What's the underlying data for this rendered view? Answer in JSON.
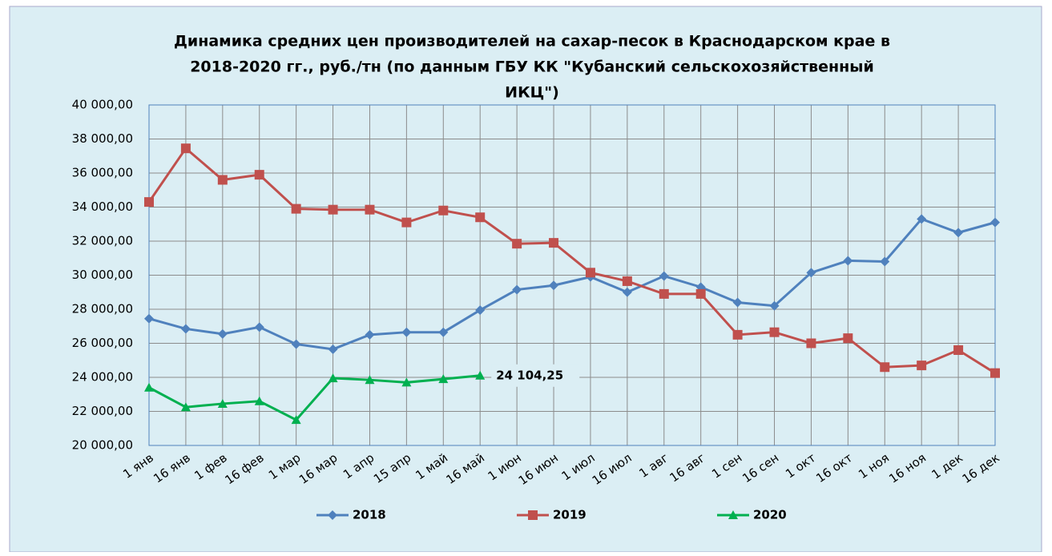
{
  "chart_data": {
    "type": "line",
    "title": [
      "Динамика  средних цен производителей на сахар-песок в Краснодарском крае в",
      "2018-2020 гг., руб./тн (по данным  ГБУ КК \"Кубанский  сельскохозяйственный",
      "ИКЦ\")"
    ],
    "categories": [
      "1 янв",
      "16 янв",
      "1 фев",
      "16 фев",
      "1 мар",
      "16 мар",
      "1 апр",
      "15 апр",
      "1 май",
      "16 май",
      "1 июн",
      "16 июн",
      "1 июл",
      "16 июл",
      "1 авг",
      "16 авг",
      "1 сен",
      "16 сен",
      "1 окт",
      "16 окт",
      "1 ноя",
      "16 ноя",
      "1 дек",
      "16 дек"
    ],
    "ylim": [
      20000,
      40000
    ],
    "yticks": [
      {
        "value": 20000,
        "label": "20 000,00"
      },
      {
        "value": 22000,
        "label": "22 000,00"
      },
      {
        "value": 24000,
        "label": "24 000,00"
      },
      {
        "value": 26000,
        "label": "26 000,00"
      },
      {
        "value": 28000,
        "label": "28 000,00"
      },
      {
        "value": 30000,
        "label": "30 000,00"
      },
      {
        "value": 32000,
        "label": "32 000,00"
      },
      {
        "value": 34000,
        "label": "34 000,00"
      },
      {
        "value": 36000,
        "label": "36 000,00"
      },
      {
        "value": 38000,
        "label": "38 000,00"
      },
      {
        "value": 40000,
        "label": "40 000,00"
      }
    ],
    "grid": true,
    "legend": "bottom",
    "series": [
      {
        "name": "2018",
        "color": "#4f81bd",
        "marker": "diamond",
        "values": [
          27450,
          26850,
          26550,
          26950,
          25950,
          25650,
          26500,
          26650,
          26650,
          27950,
          29150,
          29400,
          29900,
          29000,
          29950,
          29300,
          28400,
          28200,
          30150,
          30850,
          30800,
          33300,
          32500,
          33100
        ]
      },
      {
        "name": "2019",
        "color": "#c0504d",
        "marker": "square",
        "values": [
          34300,
          37450,
          35600,
          35900,
          33900,
          33850,
          33850,
          33100,
          33800,
          33400,
          31850,
          31900,
          30150,
          29650,
          28900,
          28900,
          26500,
          26650,
          26000,
          26300,
          24600,
          24700,
          25600,
          24250
        ]
      },
      {
        "name": "2020",
        "color": "#00b050",
        "marker": "triangle",
        "values": [
          23400,
          22250,
          22450,
          22600,
          21500,
          23950,
          23850,
          23700,
          23900,
          24104.25,
          null,
          null,
          null,
          null,
          null,
          null,
          null,
          null,
          null,
          null,
          null,
          null,
          null,
          null
        ],
        "value_labels": [
          null,
          null,
          null,
          null,
          null,
          null,
          null,
          null,
          null,
          "24 104,25",
          null,
          null,
          null,
          null,
          null,
          null,
          null,
          null,
          null,
          null,
          null,
          null,
          null,
          null
        ]
      }
    ]
  }
}
